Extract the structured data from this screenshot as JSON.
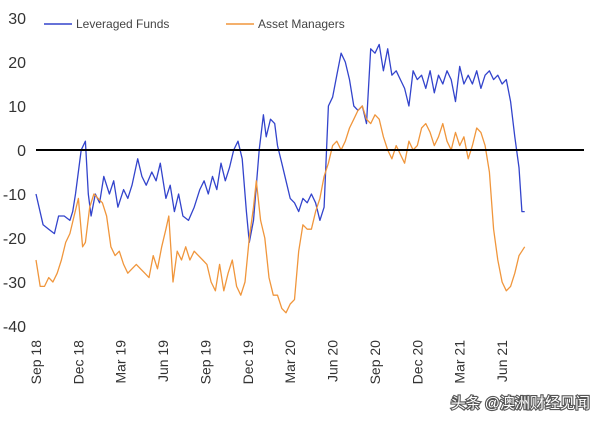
{
  "chart_data": {
    "type": "line",
    "title": "",
    "xlabel": "",
    "ylabel": "",
    "ylim": [
      -40,
      30
    ],
    "xlim": [
      0,
      38.8
    ],
    "yticks": [
      30,
      20,
      10,
      0,
      -10,
      -20,
      -30,
      -40
    ],
    "xticks": [
      {
        "label": "Sep 18",
        "x": 0
      },
      {
        "label": "Dec 18",
        "x": 3
      },
      {
        "label": "Mar 19",
        "x": 6
      },
      {
        "label": "Jun 19",
        "x": 9
      },
      {
        "label": "Sep 19",
        "x": 12
      },
      {
        "label": "Dec 19",
        "x": 15
      },
      {
        "label": "Mar 20",
        "x": 18
      },
      {
        "label": "Jun 20",
        "x": 21
      },
      {
        "label": "Sep 20",
        "x": 24
      },
      {
        "label": "Dec 20",
        "x": 27
      },
      {
        "label": "Mar 21",
        "x": 30
      },
      {
        "label": "Jun 21",
        "x": 33
      }
    ],
    "x_unit": "months since Sep 2018",
    "zero_line": true,
    "legend_position": "top",
    "series": [
      {
        "name": "Leveraged Funds",
        "color": "#3344cc",
        "points": [
          [
            0,
            -10
          ],
          [
            0.5,
            -17
          ],
          [
            0.9,
            -18
          ],
          [
            1.3,
            -19
          ],
          [
            1.6,
            -15
          ],
          [
            2.0,
            -15
          ],
          [
            2.4,
            -16
          ],
          [
            2.6,
            -14
          ],
          [
            2.8,
            -10
          ],
          [
            3.2,
            0
          ],
          [
            3.5,
            2
          ],
          [
            3.7,
            -10
          ],
          [
            3.9,
            -15
          ],
          [
            4.2,
            -10
          ],
          [
            4.5,
            -12
          ],
          [
            4.8,
            -6
          ],
          [
            5.2,
            -10
          ],
          [
            5.5,
            -7
          ],
          [
            5.8,
            -13
          ],
          [
            6.2,
            -9
          ],
          [
            6.5,
            -11
          ],
          [
            6.8,
            -8
          ],
          [
            7.2,
            -2
          ],
          [
            7.5,
            -6
          ],
          [
            7.8,
            -8
          ],
          [
            8.2,
            -5
          ],
          [
            8.5,
            -7
          ],
          [
            8.8,
            -3
          ],
          [
            9.2,
            -11
          ],
          [
            9.5,
            -8
          ],
          [
            9.8,
            -14
          ],
          [
            10.1,
            -10
          ],
          [
            10.4,
            -15
          ],
          [
            10.8,
            -16
          ],
          [
            11.2,
            -13
          ],
          [
            11.6,
            -9
          ],
          [
            11.9,
            -7
          ],
          [
            12.2,
            -10
          ],
          [
            12.5,
            -6
          ],
          [
            12.8,
            -9
          ],
          [
            13.1,
            -3
          ],
          [
            13.4,
            -7
          ],
          [
            13.7,
            -4
          ],
          [
            14.0,
            0
          ],
          [
            14.3,
            2
          ],
          [
            14.6,
            -2
          ],
          [
            14.9,
            -14
          ],
          [
            15.1,
            -21
          ],
          [
            15.4,
            -16
          ],
          [
            15.8,
            0
          ],
          [
            16.1,
            8
          ],
          [
            16.3,
            3
          ],
          [
            16.6,
            7
          ],
          [
            16.9,
            6
          ],
          [
            17.1,
            1
          ],
          [
            17.4,
            -3
          ],
          [
            17.7,
            -7
          ],
          [
            18.0,
            -11
          ],
          [
            18.3,
            -12
          ],
          [
            18.6,
            -14
          ],
          [
            18.9,
            -11
          ],
          [
            19.2,
            -12
          ],
          [
            19.5,
            -10
          ],
          [
            19.8,
            -12
          ],
          [
            20.1,
            -16
          ],
          [
            20.4,
            -13
          ],
          [
            20.7,
            10
          ],
          [
            21.0,
            12
          ],
          [
            21.3,
            17
          ],
          [
            21.6,
            22
          ],
          [
            21.9,
            20
          ],
          [
            22.2,
            16
          ],
          [
            22.5,
            10
          ],
          [
            22.8,
            9
          ],
          [
            23.1,
            10
          ],
          [
            23.4,
            6
          ],
          [
            23.7,
            23
          ],
          [
            24.0,
            22
          ],
          [
            24.3,
            24
          ],
          [
            24.6,
            18
          ],
          [
            24.9,
            23
          ],
          [
            25.2,
            17
          ],
          [
            25.5,
            18
          ],
          [
            25.8,
            16
          ],
          [
            26.1,
            14
          ],
          [
            26.4,
            10
          ],
          [
            26.7,
            18
          ],
          [
            27.0,
            16
          ],
          [
            27.3,
            17
          ],
          [
            27.6,
            14
          ],
          [
            27.9,
            18
          ],
          [
            28.2,
            13
          ],
          [
            28.5,
            17
          ],
          [
            28.8,
            15
          ],
          [
            29.1,
            18
          ],
          [
            29.4,
            16
          ],
          [
            29.7,
            11
          ],
          [
            30.0,
            19
          ],
          [
            30.3,
            15
          ],
          [
            30.6,
            17
          ],
          [
            30.9,
            15
          ],
          [
            31.2,
            18
          ],
          [
            31.5,
            14
          ],
          [
            31.8,
            17
          ],
          [
            32.1,
            18
          ],
          [
            32.4,
            16
          ],
          [
            32.7,
            17
          ],
          [
            33.0,
            15
          ],
          [
            33.3,
            16
          ],
          [
            33.6,
            11
          ],
          [
            33.9,
            3
          ],
          [
            34.2,
            -4
          ],
          [
            34.4,
            -14
          ],
          [
            34.6,
            -14
          ]
        ]
      },
      {
        "name": "Asset Managers",
        "color": "#f0963c",
        "points": [
          [
            0,
            -25
          ],
          [
            0.3,
            -31
          ],
          [
            0.6,
            -31
          ],
          [
            0.9,
            -29
          ],
          [
            1.2,
            -30
          ],
          [
            1.5,
            -28
          ],
          [
            1.8,
            -25
          ],
          [
            2.1,
            -21
          ],
          [
            2.4,
            -19
          ],
          [
            2.7,
            -15
          ],
          [
            3.0,
            -11
          ],
          [
            3.3,
            -22
          ],
          [
            3.5,
            -21
          ],
          [
            3.8,
            -13
          ],
          [
            4.1,
            -10
          ],
          [
            4.4,
            -11
          ],
          [
            4.7,
            -12
          ],
          [
            5.0,
            -15
          ],
          [
            5.3,
            -22
          ],
          [
            5.6,
            -24
          ],
          [
            5.9,
            -23
          ],
          [
            6.2,
            -26
          ],
          [
            6.5,
            -28
          ],
          [
            6.8,
            -27
          ],
          [
            7.1,
            -26
          ],
          [
            7.4,
            -27
          ],
          [
            7.7,
            -28
          ],
          [
            8.0,
            -29
          ],
          [
            8.3,
            -24
          ],
          [
            8.6,
            -27
          ],
          [
            8.9,
            -22
          ],
          [
            9.2,
            -18
          ],
          [
            9.4,
            -15
          ],
          [
            9.7,
            -30
          ],
          [
            10.0,
            -23
          ],
          [
            10.3,
            -25
          ],
          [
            10.6,
            -22
          ],
          [
            10.9,
            -25
          ],
          [
            11.2,
            -23
          ],
          [
            11.5,
            -24
          ],
          [
            11.8,
            -25
          ],
          [
            12.1,
            -26
          ],
          [
            12.4,
            -30
          ],
          [
            12.7,
            -32
          ],
          [
            13.0,
            -26
          ],
          [
            13.3,
            -32
          ],
          [
            13.6,
            -28
          ],
          [
            13.9,
            -25
          ],
          [
            14.2,
            -31
          ],
          [
            14.5,
            -33
          ],
          [
            14.8,
            -30
          ],
          [
            15.1,
            -20
          ],
          [
            15.4,
            -13
          ],
          [
            15.6,
            -7
          ],
          [
            15.9,
            -16
          ],
          [
            16.2,
            -20
          ],
          [
            16.5,
            -29
          ],
          [
            16.8,
            -33
          ],
          [
            17.1,
            -33
          ],
          [
            17.4,
            -36
          ],
          [
            17.7,
            -37
          ],
          [
            18.0,
            -35
          ],
          [
            18.3,
            -34
          ],
          [
            18.6,
            -23
          ],
          [
            18.9,
            -17
          ],
          [
            19.2,
            -18
          ],
          [
            19.5,
            -18
          ],
          [
            19.8,
            -14
          ],
          [
            20.1,
            -11
          ],
          [
            20.4,
            -6
          ],
          [
            20.7,
            -3
          ],
          [
            21.0,
            1
          ],
          [
            21.3,
            2
          ],
          [
            21.6,
            0
          ],
          [
            21.9,
            2
          ],
          [
            22.2,
            5
          ],
          [
            22.5,
            7
          ],
          [
            22.8,
            9
          ],
          [
            23.1,
            10
          ],
          [
            23.4,
            7
          ],
          [
            23.7,
            6
          ],
          [
            24.0,
            8
          ],
          [
            24.3,
            7
          ],
          [
            24.6,
            3
          ],
          [
            24.9,
            0
          ],
          [
            25.2,
            -2
          ],
          [
            25.5,
            1
          ],
          [
            25.8,
            -1
          ],
          [
            26.1,
            -3
          ],
          [
            26.4,
            2
          ],
          [
            26.7,
            0
          ],
          [
            27.0,
            1
          ],
          [
            27.3,
            5
          ],
          [
            27.6,
            6
          ],
          [
            27.9,
            4
          ],
          [
            28.2,
            1
          ],
          [
            28.5,
            3
          ],
          [
            28.8,
            6
          ],
          [
            29.1,
            2
          ],
          [
            29.4,
            0
          ],
          [
            29.7,
            4
          ],
          [
            30.0,
            1
          ],
          [
            30.3,
            3
          ],
          [
            30.6,
            -2
          ],
          [
            30.9,
            1
          ],
          [
            31.2,
            5
          ],
          [
            31.5,
            4
          ],
          [
            31.8,
            1
          ],
          [
            32.1,
            -5
          ],
          [
            32.4,
            -18
          ],
          [
            32.7,
            -25
          ],
          [
            33.0,
            -30
          ],
          [
            33.3,
            -32
          ],
          [
            33.6,
            -31
          ],
          [
            33.9,
            -28
          ],
          [
            34.2,
            -24
          ],
          [
            34.4,
            -23
          ],
          [
            34.6,
            -22
          ]
        ]
      }
    ]
  },
  "watermark": {
    "text": "头条 @澳洲财经见闻"
  }
}
